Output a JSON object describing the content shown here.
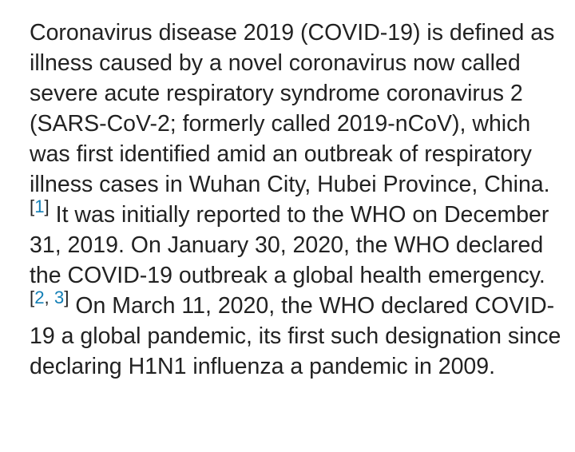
{
  "paragraph": {
    "segment_1": "Coronavirus disease 2019 (COVID-19) is defined as illness caused by a novel coronavirus now called severe acute respiratory syndrome coronavirus 2 (SARS-CoV-2; formerly called 2019-nCoV), which was first identified amid an outbreak of respiratory illness cases in Wuhan City, Hubei Province, China.",
    "segment_2": "It was initially reported to the WHO on December 31, 2019. On January 30, 2020, the WHO declared the COVID-19 outbreak a global health emergency.",
    "segment_3": "On March 11, 2020, the WHO declared COVID-19 a global pandemic, its first such designation since declaring H1N1 influenza a pandemic in 2009."
  },
  "references": {
    "ref_1": "1",
    "ref_2": "2",
    "ref_3": "3",
    "open_bracket": "[",
    "close_bracket": "]",
    "separator": ", "
  },
  "colors": {
    "text": "#222222",
    "link": "#137fb6",
    "background": "#ffffff"
  }
}
